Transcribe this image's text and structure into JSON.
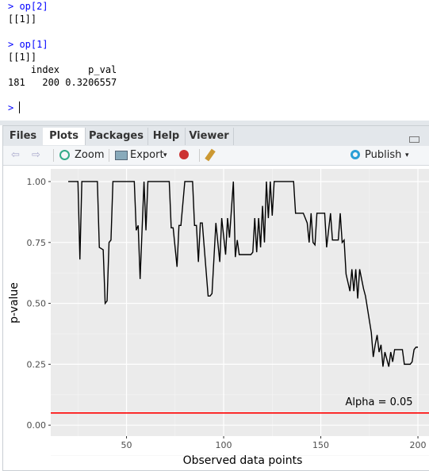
{
  "console": [
    "> op[2]",
    "[[1]]",
    "> op[1]",
    "[[1]]",
    "    index     p_val",
    "181   200 0.3206557",
    ">"
  ],
  "tabs": [
    "Files",
    "Plots",
    "Packages",
    "Help",
    "Viewer"
  ],
  "toolbar": {
    "zoom": "Zoom",
    "export": "Export",
    "publish": "Publish"
  },
  "chart_data": {
    "type": "line",
    "xlabel": "Observed data points",
    "ylabel": "p-value",
    "color": "#000000",
    "x": [
      20,
      25,
      26,
      27,
      35,
      36,
      38,
      39,
      40,
      41,
      42,
      43,
      48,
      50,
      54,
      55,
      56,
      57,
      59,
      60,
      61,
      72,
      73,
      74,
      76,
      77,
      78,
      80,
      84,
      85,
      86,
      87,
      88,
      89,
      92,
      93,
      94,
      96,
      98,
      99,
      101,
      102,
      103,
      105,
      106,
      107,
      108,
      114,
      115,
      116,
      117,
      118,
      119,
      120,
      121,
      122,
      123,
      124,
      125,
      126,
      136,
      137,
      141,
      143,
      144,
      145,
      146,
      147,
      148,
      152,
      153,
      155,
      156,
      159,
      160,
      161,
      162,
      163,
      165,
      166,
      167,
      168,
      169,
      170,
      172,
      173,
      175,
      176,
      177,
      178,
      179,
      180,
      181,
      182,
      183,
      185,
      186,
      187,
      188,
      192,
      193,
      196,
      197,
      198,
      199,
      200
    ],
    "values": [
      1.0,
      1.0,
      0.68,
      1.0,
      1.0,
      0.73,
      0.72,
      0.5,
      0.51,
      0.75,
      0.76,
      1.0,
      1.0,
      1.0,
      1.0,
      0.8,
      0.82,
      0.6,
      1.0,
      0.8,
      1.0,
      1.0,
      0.81,
      0.81,
      0.65,
      0.82,
      0.82,
      1.0,
      1.0,
      0.82,
      0.82,
      0.67,
      0.83,
      0.83,
      0.53,
      0.53,
      0.54,
      0.83,
      0.67,
      0.85,
      0.7,
      0.85,
      0.77,
      1.0,
      0.69,
      0.76,
      0.7,
      0.7,
      0.71,
      0.85,
      0.71,
      0.85,
      0.73,
      0.9,
      0.75,
      1.0,
      0.85,
      1.0,
      0.86,
      1.0,
      1.0,
      0.87,
      0.87,
      0.83,
      0.75,
      0.87,
      0.75,
      0.74,
      0.87,
      0.87,
      0.73,
      0.87,
      0.76,
      0.76,
      0.87,
      0.75,
      0.76,
      0.62,
      0.55,
      0.64,
      0.55,
      0.64,
      0.52,
      0.64,
      0.56,
      0.53,
      0.43,
      0.38,
      0.28,
      0.33,
      0.37,
      0.3,
      0.33,
      0.24,
      0.3,
      0.24,
      0.3,
      0.26,
      0.31,
      0.31,
      0.25,
      0.25,
      0.26,
      0.31,
      0.32,
      0.32
    ],
    "xlim": [
      11,
      209
    ],
    "ylim": [
      -0.045,
      1.052
    ],
    "xticks": [
      50,
      100,
      150,
      200
    ],
    "yticks": [
      {
        "value": 0,
        "label": "0.00"
      },
      {
        "value": 0.25,
        "label": "0.25"
      },
      {
        "value": 0.5,
        "label": "0.50"
      },
      {
        "value": 0.75,
        "label": "0.75"
      },
      {
        "value": 1,
        "label": "1.00"
      }
    ],
    "grid": true,
    "hline": {
      "value": 0.05,
      "color": "#ff0000",
      "label": "Alpha = 0.05",
      "label_x": 180
    }
  }
}
